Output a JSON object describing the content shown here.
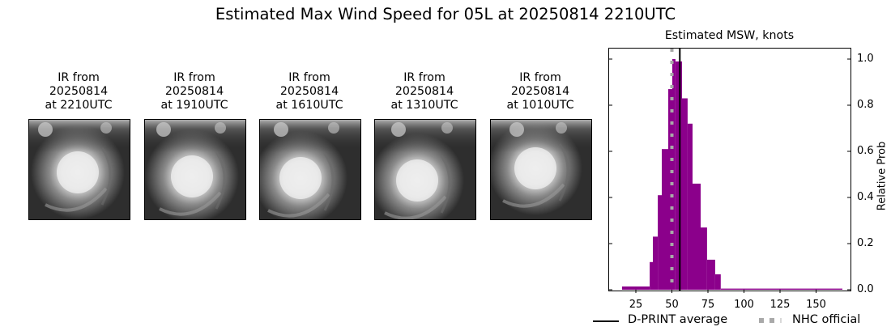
{
  "figure": {
    "title": "Estimated Max Wind Speed for 05L at 20250814 2210UTC"
  },
  "ir_panels": [
    {
      "title": "IR from\n20250814\nat 2210UTC",
      "label": "IR from 20250814 at 2210UTC"
    },
    {
      "title": "IR from\n20250814\nat 1910UTC",
      "label": "IR from 20250814 at 1910UTC"
    },
    {
      "title": "IR from\n20250814\nat 1610UTC",
      "label": "IR from 20250814 at 1610UTC"
    },
    {
      "title": "IR from\n20250814\nat 1310UTC",
      "label": "IR from 20250814 at 1310UTC"
    },
    {
      "title": "IR from\n20250814\nat 1010UTC",
      "label": "IR from 20250814 at 1010UTC"
    }
  ],
  "histogram": {
    "title": "Estimated MSW, knots",
    "ylabel": "Relative Prob",
    "xticks": [
      "25",
      "50",
      "75",
      "100",
      "125",
      "150"
    ],
    "yticks": [
      "0.0",
      "0.2",
      "0.4",
      "0.6",
      "0.8",
      "1.0"
    ],
    "legend": {
      "dprint": "D-PRINT average",
      "nhc": "NHC official"
    },
    "colors": {
      "bars": "#8b008b",
      "dprint_line": "#000000",
      "nhc_line": "#a9a9a9"
    }
  },
  "chart_data": {
    "type": "bar",
    "title": "Estimated MSW, knots",
    "suptitle": "Estimated Max Wind Speed for 05L at 20250814 2210UTC",
    "xlabel": "",
    "ylabel": "Relative Prob",
    "xlim": [
      6,
      174
    ],
    "ylim": [
      0,
      1.05
    ],
    "xticks": [
      25,
      50,
      75,
      100,
      125,
      150
    ],
    "yticks": [
      0.0,
      0.2,
      0.4,
      0.6,
      0.8,
      1.0
    ],
    "y_axis_position": "right",
    "grid": false,
    "bins": [
      {
        "x0": 15.4,
        "x1": 34.6,
        "value": 0.014
      },
      {
        "x0": 34.6,
        "x1": 36.8,
        "value": 0.12
      },
      {
        "x0": 36.8,
        "x1": 40.2,
        "value": 0.23
      },
      {
        "x0": 40.2,
        "x1": 43.0,
        "value": 0.41
      },
      {
        "x0": 43.0,
        "x1": 47.5,
        "value": 0.61
      },
      {
        "x0": 47.5,
        "x1": 50.3,
        "value": 0.87
      },
      {
        "x0": 50.3,
        "x1": 52.5,
        "value": 1.0
      },
      {
        "x0": 52.5,
        "x1": 57.0,
        "value": 0.99
      },
      {
        "x0": 57.0,
        "x1": 60.9,
        "value": 0.83
      },
      {
        "x0": 60.9,
        "x1": 64.3,
        "value": 0.72
      },
      {
        "x0": 64.3,
        "x1": 69.9,
        "value": 0.46
      },
      {
        "x0": 69.9,
        "x1": 74.4,
        "value": 0.27
      },
      {
        "x0": 74.4,
        "x1": 80.0,
        "value": 0.13
      },
      {
        "x0": 80.0,
        "x1": 83.9,
        "value": 0.067
      },
      {
        "x0": 83.9,
        "x1": 168.3,
        "value": 0.005
      }
    ],
    "vlines": [
      {
        "name": "D-PRINT average",
        "x": 55.5,
        "style": "solid",
        "color": "#000000"
      },
      {
        "name": "NHC official",
        "x": 50,
        "style": "dotted",
        "color": "#a9a9a9"
      }
    ],
    "legend": [
      "D-PRINT average",
      "NHC official"
    ],
    "legend_position": "below"
  }
}
